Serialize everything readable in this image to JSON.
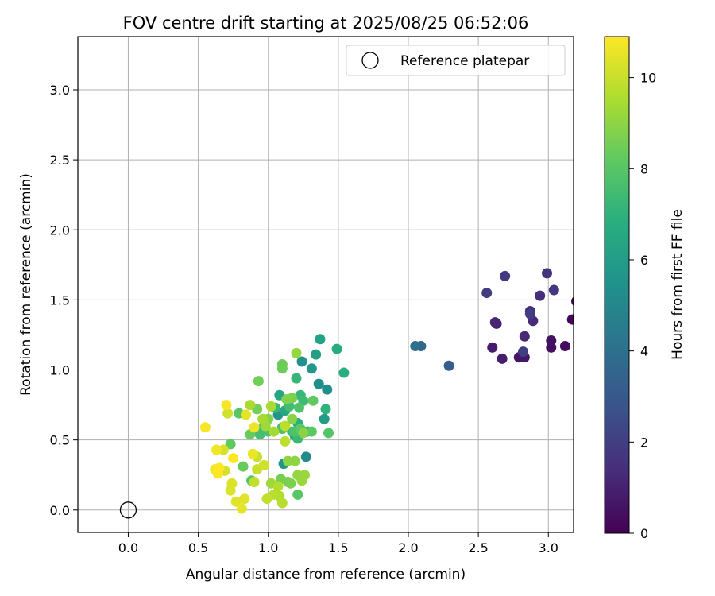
{
  "chart_data": {
    "type": "scatter",
    "title": "FOV centre drift starting at 2025/08/25 06:52:06",
    "xlabel": "Angular distance from reference (arcmin)",
    "ylabel": "Rotation from reference (arcmin)",
    "xlim": [
      -0.36,
      3.18
    ],
    "ylim": [
      -0.16,
      3.38
    ],
    "xticks": [
      0.0,
      0.5,
      1.0,
      1.5,
      2.0,
      2.5,
      3.0
    ],
    "xtick_labels": [
      "0.0",
      "0.5",
      "1.0",
      "1.5",
      "2.0",
      "2.5",
      "3.0"
    ],
    "yticks": [
      0.0,
      0.5,
      1.0,
      1.5,
      2.0,
      2.5,
      3.0
    ],
    "ytick_labels": [
      "0.0",
      "0.5",
      "1.0",
      "1.5",
      "2.0",
      "2.5",
      "3.0"
    ],
    "grid": true,
    "legend": {
      "position": "upper right",
      "entries": [
        "Reference platepar"
      ]
    },
    "reference_point": {
      "x": 0.0,
      "y": 0.0
    },
    "colorbar": {
      "label": "Hours from first FF file",
      "colormap": "viridis",
      "range": [
        0,
        10.9
      ],
      "ticks": [
        0,
        2,
        4,
        6,
        8,
        10
      ],
      "tick_labels": [
        "0",
        "2",
        "4",
        "6",
        "8",
        "10"
      ]
    },
    "points": [
      [
        3.2,
        1.49,
        0.1
      ],
      [
        3.17,
        1.36,
        0.2
      ],
      [
        3.12,
        1.17,
        0.3
      ],
      [
        3.02,
        1.16,
        0.4
      ],
      [
        3.02,
        1.21,
        0.5
      ],
      [
        2.79,
        1.09,
        0.6
      ],
      [
        2.83,
        1.09,
        0.7
      ],
      [
        2.6,
        1.16,
        0.8
      ],
      [
        2.67,
        1.08,
        0.9
      ],
      [
        2.63,
        1.33,
        1.0
      ],
      [
        2.62,
        1.34,
        1.1
      ],
      [
        2.83,
        1.24,
        1.2
      ],
      [
        2.89,
        1.35,
        1.3
      ],
      [
        2.94,
        1.53,
        1.4
      ],
      [
        2.87,
        1.42,
        1.5
      ],
      [
        2.99,
        1.69,
        1.6
      ],
      [
        3.04,
        1.57,
        1.7
      ],
      [
        2.69,
        1.67,
        1.8
      ],
      [
        2.56,
        1.55,
        1.9
      ],
      [
        2.87,
        1.4,
        1.95
      ],
      [
        2.82,
        1.13,
        2.0
      ],
      [
        2.29,
        1.03,
        3.2
      ],
      [
        2.09,
        1.17,
        3.6
      ],
      [
        2.05,
        1.17,
        4.0
      ],
      [
        1.27,
        0.38,
        5.2
      ],
      [
        1.36,
        0.9,
        5.3
      ],
      [
        1.42,
        0.86,
        5.4
      ],
      [
        1.24,
        1.06,
        5.5
      ],
      [
        1.11,
        0.33,
        5.6
      ],
      [
        1.07,
        0.68,
        5.7
      ],
      [
        1.31,
        1.01,
        5.8
      ],
      [
        1.4,
        0.65,
        5.9
      ],
      [
        1.15,
        0.79,
        6.0
      ],
      [
        1.34,
        1.11,
        6.1
      ],
      [
        1.37,
        1.22,
        6.2
      ],
      [
        1.19,
        0.53,
        6.3
      ],
      [
        1.08,
        0.82,
        6.4
      ],
      [
        1.12,
        0.71,
        6.5
      ],
      [
        0.96,
        0.58,
        6.6
      ],
      [
        1.49,
        1.15,
        6.7
      ],
      [
        1.54,
        0.98,
        6.8
      ],
      [
        1.21,
        0.62,
        6.9
      ],
      [
        1.41,
        0.72,
        7.0
      ],
      [
        1.28,
        0.56,
        7.1
      ],
      [
        1.23,
        0.82,
        7.2
      ],
      [
        1.2,
        0.94,
        7.2
      ],
      [
        1.21,
        0.51,
        7.3
      ],
      [
        1.05,
        0.73,
        7.3
      ],
      [
        1.17,
        0.56,
        7.4
      ],
      [
        1.25,
        0.78,
        7.4
      ],
      [
        1.15,
        0.74,
        7.5
      ],
      [
        1.1,
        0.59,
        7.5
      ],
      [
        0.94,
        0.54,
        7.6
      ],
      [
        0.97,
        0.6,
        7.6
      ],
      [
        1.0,
        0.56,
        7.7
      ],
      [
        1.1,
        0.58,
        7.7
      ],
      [
        1.22,
        0.73,
        7.8
      ],
      [
        1.19,
        0.56,
        7.8
      ],
      [
        1.43,
        0.55,
        7.9
      ],
      [
        0.88,
        0.21,
        7.9
      ],
      [
        1.21,
        0.11,
        8.0
      ],
      [
        0.79,
        0.69,
        8.0
      ],
      [
        1.23,
        0.58,
        8.1
      ],
      [
        1.31,
        0.56,
        8.1
      ],
      [
        1.32,
        0.78,
        8.2
      ],
      [
        0.73,
        0.47,
        8.2
      ],
      [
        0.82,
        0.31,
        8.3
      ],
      [
        0.87,
        0.54,
        8.3
      ],
      [
        1.1,
        1.04,
        8.4
      ],
      [
        1.1,
        1.01,
        8.4
      ],
      [
        0.93,
        0.92,
        8.5
      ],
      [
        0.92,
        0.72,
        8.5
      ],
      [
        1.09,
        0.22,
        8.6
      ],
      [
        1.14,
        0.2,
        8.6
      ],
      [
        1.16,
        0.19,
        8.7
      ],
      [
        1.17,
        0.8,
        8.7
      ],
      [
        1.13,
        0.79,
        8.8
      ],
      [
        1.0,
        0.65,
        8.8
      ],
      [
        1.17,
        0.65,
        8.9
      ],
      [
        1.25,
        0.55,
        8.9
      ],
      [
        1.14,
        0.35,
        9.0
      ],
      [
        1.19,
        0.35,
        9.0
      ],
      [
        1.2,
        1.12,
        9.1
      ],
      [
        1.21,
        0.25,
        9.1
      ],
      [
        1.24,
        0.21,
        9.2
      ],
      [
        1.26,
        0.25,
        9.2
      ],
      [
        1.02,
        0.19,
        9.3
      ],
      [
        0.98,
        0.6,
        9.3
      ],
      [
        1.04,
        0.56,
        9.4
      ],
      [
        0.96,
        0.65,
        9.4
      ],
      [
        0.87,
        0.75,
        9.5
      ],
      [
        1.02,
        0.74,
        9.5
      ],
      [
        1.07,
        0.17,
        9.6
      ],
      [
        1.08,
        0.1,
        9.6
      ],
      [
        1.1,
        0.05,
        9.7
      ],
      [
        1.04,
        0.11,
        9.7
      ],
      [
        1.12,
        0.49,
        9.8
      ],
      [
        1.12,
        0.6,
        9.8
      ],
      [
        0.99,
        0.08,
        9.9
      ],
      [
        0.9,
        0.2,
        9.9
      ],
      [
        0.92,
        0.29,
        10.0
      ],
      [
        0.92,
        0.38,
        10.0
      ],
      [
        0.97,
        0.32,
        10.1
      ],
      [
        0.71,
        0.69,
        10.1
      ],
      [
        0.69,
        0.28,
        10.2
      ],
      [
        0.68,
        0.43,
        10.2
      ],
      [
        0.74,
        0.19,
        10.3
      ],
      [
        0.73,
        0.14,
        10.3
      ],
      [
        0.77,
        0.06,
        10.4
      ],
      [
        0.83,
        0.08,
        10.4
      ],
      [
        0.81,
        0.01,
        10.5
      ],
      [
        0.84,
        0.68,
        10.5
      ],
      [
        0.89,
        0.4,
        10.6
      ],
      [
        0.9,
        0.59,
        10.6
      ],
      [
        0.62,
        0.29,
        10.7
      ],
      [
        0.63,
        0.43,
        10.7
      ],
      [
        0.55,
        0.59,
        10.8
      ],
      [
        0.7,
        0.75,
        10.8
      ],
      [
        0.64,
        0.26,
        10.9
      ],
      [
        0.65,
        0.3,
        10.9
      ],
      [
        0.75,
        0.37,
        10.9
      ]
    ]
  }
}
